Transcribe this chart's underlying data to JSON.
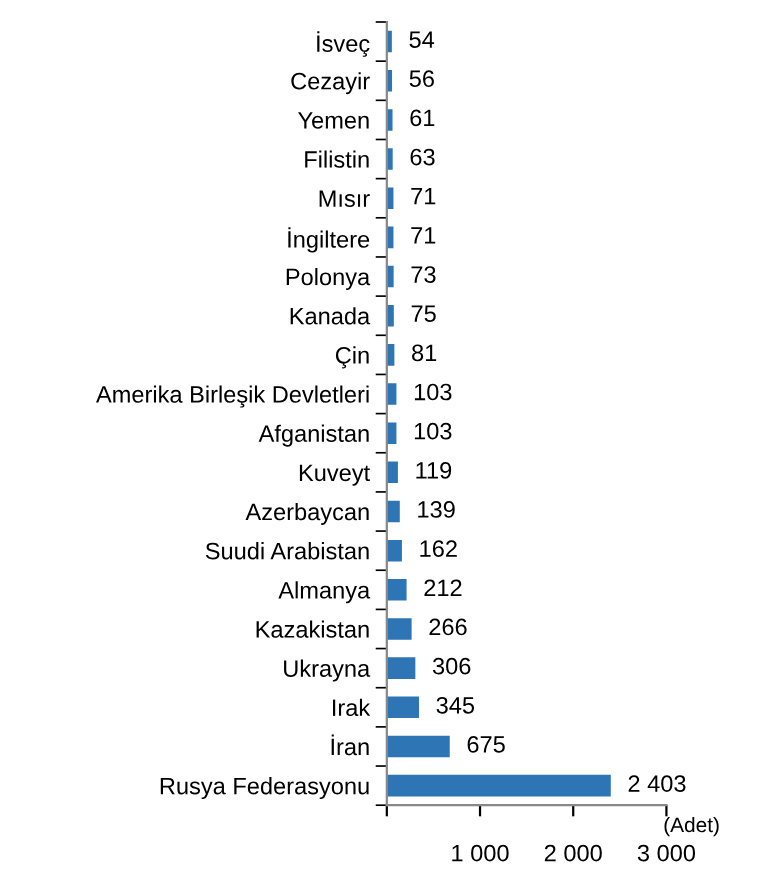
{
  "chart_data": {
    "type": "bar",
    "orientation": "horizontal",
    "xlabel": "(Adet)",
    "categories": [
      "İsveç",
      "Cezayir",
      "Yemen",
      "Filistin",
      "Mısır",
      "İngiltere",
      "Polonya",
      "Kanada",
      "Çin",
      "Amerika Birleşik Devletleri",
      "Afganistan",
      "Kuveyt",
      "Azerbaycan",
      "Suudi Arabistan",
      "Almanya",
      "Kazakistan",
      "Ukrayna",
      "Irak",
      "İran",
      "Rusya Federasyonu"
    ],
    "values": [
      54,
      56,
      61,
      63,
      71,
      71,
      73,
      75,
      81,
      103,
      103,
      119,
      139,
      162,
      212,
      266,
      306,
      345,
      675,
      2403
    ],
    "value_labels": [
      "54",
      "56",
      "61",
      "63",
      "71",
      "71",
      "73",
      "75",
      "81",
      "103",
      "103",
      "119",
      "139",
      "162",
      "212",
      "266",
      "306",
      "345",
      "675",
      "2 403"
    ],
    "color": "#2e75b6",
    "xlim": [
      0,
      3000
    ],
    "xticks": [
      {
        "value": 0,
        "label": null
      },
      {
        "value": 1000,
        "label": "1 000"
      },
      {
        "value": 2000,
        "label": "2 000"
      },
      {
        "value": 3000,
        "label": "3 000"
      }
    ],
    "grid": false,
    "legend": false
  }
}
